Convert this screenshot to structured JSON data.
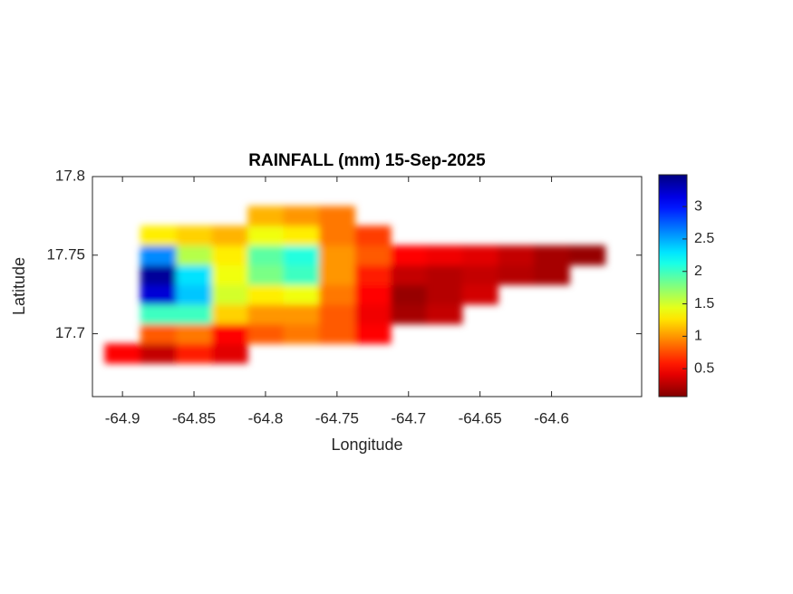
{
  "chart_data": {
    "type": "heatmap",
    "title": "RAINFALL (mm) 15-Sep-2025",
    "x_label": "Longitude",
    "y_label": "Latitude",
    "xlim": [
      -64.921,
      -64.537
    ],
    "ylim": [
      17.66,
      17.8
    ],
    "xticks": [
      -64.9,
      -64.85,
      -64.8,
      -64.75,
      -64.7,
      -64.65,
      -64.6
    ],
    "yticks": [
      17.7,
      17.75,
      17.8
    ],
    "colormap": "jet",
    "colormap_reversed": true,
    "clim": [
      0.07,
      3.49
    ],
    "colorbar_ticks": [
      0.5,
      1,
      1.5,
      2,
      2.5,
      3
    ],
    "x": [
      -64.9,
      -64.875,
      -64.85,
      -64.825,
      -64.8,
      -64.775,
      -64.75,
      -64.725,
      -64.7,
      -64.675,
      -64.65,
      -64.625,
      -64.6,
      -64.575
    ],
    "y": [
      17.6875,
      17.7,
      17.7125,
      17.725,
      17.7375,
      17.75,
      17.7625,
      17.775
    ],
    "z": [
      [
        0.5,
        0.3,
        0.6,
        0.4,
        null,
        null,
        null,
        null,
        null,
        null,
        null,
        null,
        null,
        null
      ],
      [
        null,
        0.8,
        0.9,
        0.5,
        0.8,
        0.9,
        0.8,
        0.5,
        null,
        null,
        null,
        null,
        null,
        null
      ],
      [
        null,
        2.0,
        2.0,
        1.2,
        1.0,
        1.0,
        0.8,
        0.45,
        0.2,
        0.3,
        null,
        null,
        null,
        null
      ],
      [
        null,
        3.2,
        2.4,
        1.5,
        1.3,
        1.4,
        0.9,
        0.5,
        0.15,
        0.25,
        0.35,
        null,
        null,
        null
      ],
      [
        null,
        3.4,
        2.3,
        1.4,
        1.8,
        2.0,
        1.0,
        0.6,
        0.3,
        0.25,
        0.3,
        0.25,
        0.2,
        null
      ],
      [
        null,
        2.6,
        1.6,
        1.3,
        1.9,
        2.1,
        1.0,
        0.8,
        0.5,
        0.45,
        0.4,
        0.3,
        0.2,
        0.15
      ],
      [
        null,
        1.3,
        1.2,
        1.1,
        1.4,
        1.3,
        0.9,
        0.7,
        null,
        null,
        null,
        null,
        null,
        null
      ],
      [
        null,
        null,
        null,
        null,
        1.1,
        1.0,
        0.9,
        null,
        null,
        null,
        null,
        null,
        null,
        null
      ]
    ]
  }
}
